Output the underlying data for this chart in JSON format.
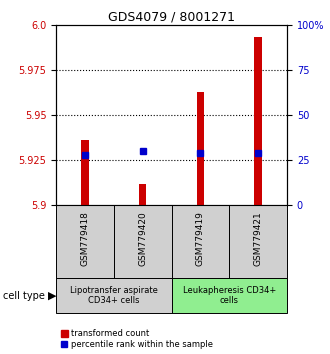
{
  "title": "GDS4079 / 8001271",
  "samples": [
    "GSM779418",
    "GSM779420",
    "GSM779419",
    "GSM779421"
  ],
  "red_values": [
    5.936,
    5.912,
    5.963,
    5.993
  ],
  "blue_values": [
    5.928,
    5.93,
    5.929,
    5.929
  ],
  "y_min": 5.9,
  "y_max": 6.0,
  "y_ticks_left": [
    5.9,
    5.925,
    5.95,
    5.975,
    6.0
  ],
  "y_ticks_right": [
    0,
    25,
    50,
    75,
    100
  ],
  "dotted_lines": [
    5.925,
    5.95,
    5.975
  ],
  "group1_label": "Lipotransfer aspirate\nCD34+ cells",
  "group2_label": "Leukapheresis CD34+\ncells",
  "group1_color": "#d0d0d0",
  "group2_color": "#90ee90",
  "cell_type_label": "cell type",
  "legend_red": "transformed count",
  "legend_blue": "percentile rank within the sample",
  "bar_color": "#cc0000",
  "dot_color": "#0000cc",
  "left_axis_color": "#cc0000",
  "right_axis_color": "#0000cc"
}
